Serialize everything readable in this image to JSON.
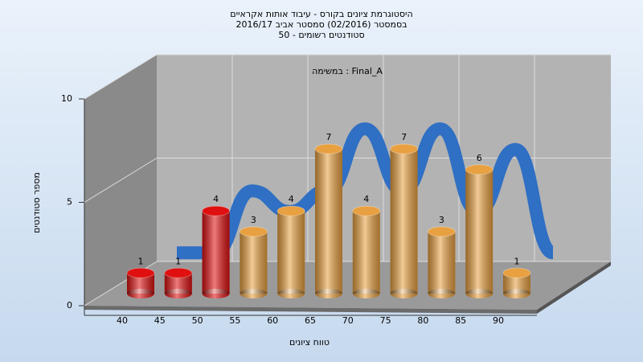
{
  "chart_data": {
    "type": "bar3d",
    "title": [
      "היסטוגרמת ציונים בקורס - עיבוד אותות אקראיים",
      "בסמסטר  (02/2016)  סמסטר אביב 2016/17",
      "סטודנטים רשומים - 50"
    ],
    "annotation": "במשימה : Final_A",
    "x_label": "טווח ציונים",
    "y_label": "מספר סטודנטים",
    "categories": [
      "40",
      "45",
      "50",
      "55",
      "60",
      "65",
      "70",
      "75",
      "80",
      "85",
      "90"
    ],
    "values": [
      1,
      1,
      4,
      3,
      4,
      7,
      4,
      7,
      3,
      6,
      1
    ],
    "colors": [
      "#e01010",
      "#e01010",
      "#e01010",
      "#e8a040",
      "#e8a040",
      "#e8a040",
      "#e8a040",
      "#e8a040",
      "#e8a040",
      "#e8a040",
      "#e8a040"
    ],
    "ribbon_color": "#2f6fc4",
    "ylim": [
      0,
      10
    ],
    "yticks": [
      0,
      5,
      10
    ],
    "grid": true
  }
}
